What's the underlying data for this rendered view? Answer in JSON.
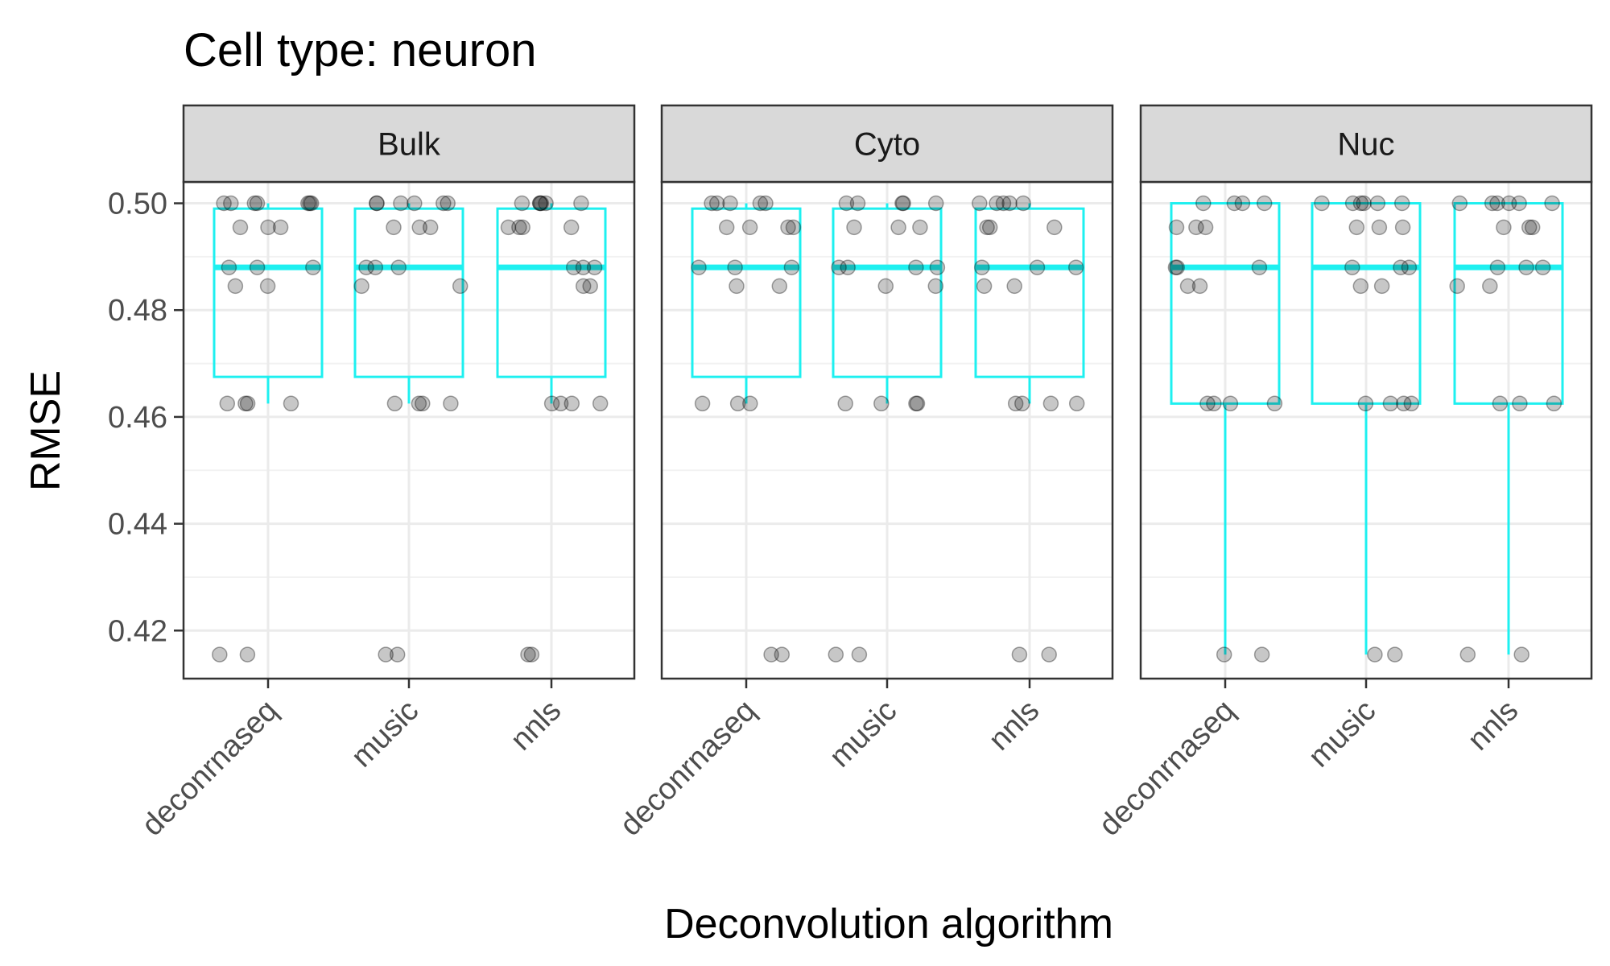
{
  "chart_data": {
    "type": "boxplot",
    "title": "Cell type: neuron",
    "xlabel": "Deconvolution algorithm",
    "ylabel": "RMSE",
    "ylim": [
      0.411,
      0.504
    ],
    "yticks": [
      0.42,
      0.44,
      0.46,
      0.48,
      0.5
    ],
    "ytick_labels": [
      "0.42",
      "0.44",
      "0.46",
      "0.48",
      "0.50"
    ],
    "categories": [
      "deconrnaseq",
      "music",
      "nnls"
    ],
    "grid": true,
    "box_color": "#1ef0f0",
    "point_color": "#000000",
    "panels": [
      {
        "name": "Bulk",
        "boxes": [
          {
            "category": "deconrnaseq",
            "q1": 0.4675,
            "median": 0.488,
            "q3": 0.499,
            "whisker_low": 0.4625,
            "whisker_high": 0.5
          },
          {
            "category": "music",
            "q1": 0.4675,
            "median": 0.488,
            "q3": 0.499,
            "whisker_low": 0.4625,
            "whisker_high": 0.5
          },
          {
            "category": "nnls",
            "q1": 0.4675,
            "median": 0.488,
            "q3": 0.499,
            "whisker_low": 0.4625,
            "whisker_high": 0.5
          }
        ],
        "points": [
          {
            "category": "deconrnaseq",
            "values": [
              0.5,
              0.5,
              0.5,
              0.5,
              0.5,
              0.5,
              0.5,
              0.4955,
              0.4955,
              0.4955,
              0.488,
              0.488,
              0.488,
              0.4845,
              0.4845,
              0.4625,
              0.4625,
              0.4625,
              0.4625,
              0.4155,
              0.4155
            ]
          },
          {
            "category": "music",
            "values": [
              0.5,
              0.5,
              0.5,
              0.5,
              0.5,
              0.5,
              0.4955,
              0.4955,
              0.4955,
              0.488,
              0.488,
              0.488,
              0.4845,
              0.4845,
              0.4625,
              0.4625,
              0.4625,
              0.4625,
              0.4155,
              0.4155
            ]
          },
          {
            "category": "nnls",
            "values": [
              0.5,
              0.5,
              0.5,
              0.5,
              0.5,
              0.5,
              0.4955,
              0.4955,
              0.4955,
              0.4955,
              0.488,
              0.488,
              0.488,
              0.4845,
              0.4845,
              0.4625,
              0.4625,
              0.4625,
              0.4625,
              0.4155,
              0.4155
            ]
          }
        ]
      },
      {
        "name": "Cyto",
        "boxes": [
          {
            "category": "deconrnaseq",
            "q1": 0.4675,
            "median": 0.488,
            "q3": 0.499,
            "whisker_low": 0.4625,
            "whisker_high": 0.5
          },
          {
            "category": "music",
            "q1": 0.4675,
            "median": 0.488,
            "q3": 0.499,
            "whisker_low": 0.4625,
            "whisker_high": 0.5
          },
          {
            "category": "nnls",
            "q1": 0.4675,
            "median": 0.488,
            "q3": 0.499,
            "whisker_low": 0.4625,
            "whisker_high": 0.5
          }
        ],
        "points": [
          {
            "category": "deconrnaseq",
            "values": [
              0.5,
              0.5,
              0.5,
              0.5,
              0.5,
              0.4955,
              0.4955,
              0.4955,
              0.4955,
              0.488,
              0.488,
              0.488,
              0.4845,
              0.4845,
              0.4625,
              0.4625,
              0.4625,
              0.4155,
              0.4155
            ]
          },
          {
            "category": "music",
            "values": [
              0.5,
              0.5,
              0.5,
              0.5,
              0.5,
              0.4955,
              0.4955,
              0.4955,
              0.488,
              0.488,
              0.488,
              0.488,
              0.4845,
              0.4845,
              0.4625,
              0.4625,
              0.4625,
              0.4625,
              0.4155,
              0.4155
            ]
          },
          {
            "category": "nnls",
            "values": [
              0.5,
              0.5,
              0.5,
              0.5,
              0.5,
              0.4955,
              0.4955,
              0.4955,
              0.488,
              0.488,
              0.488,
              0.4845,
              0.4845,
              0.4625,
              0.4625,
              0.4625,
              0.4625,
              0.4155,
              0.4155
            ]
          }
        ]
      },
      {
        "name": "Nuc",
        "boxes": [
          {
            "category": "deconrnaseq",
            "q1": 0.4625,
            "median": 0.488,
            "q3": 0.5,
            "whisker_low": 0.4155,
            "whisker_high": 0.5
          },
          {
            "category": "music",
            "q1": 0.4625,
            "median": 0.488,
            "q3": 0.5,
            "whisker_low": 0.4155,
            "whisker_high": 0.5
          },
          {
            "category": "nnls",
            "q1": 0.4625,
            "median": 0.488,
            "q3": 0.5,
            "whisker_low": 0.4155,
            "whisker_high": 0.5
          }
        ],
        "points": [
          {
            "category": "deconrnaseq",
            "values": [
              0.5,
              0.5,
              0.5,
              0.5,
              0.4955,
              0.4955,
              0.4955,
              0.488,
              0.488,
              0.488,
              0.4845,
              0.4845,
              0.4625,
              0.4625,
              0.4625,
              0.4625,
              0.4155,
              0.4155
            ]
          },
          {
            "category": "music",
            "values": [
              0.5,
              0.5,
              0.5,
              0.5,
              0.5,
              0.5,
              0.4955,
              0.4955,
              0.4955,
              0.488,
              0.488,
              0.488,
              0.4845,
              0.4845,
              0.4625,
              0.4625,
              0.4625,
              0.4625,
              0.4155,
              0.4155
            ]
          },
          {
            "category": "nnls",
            "values": [
              0.5,
              0.5,
              0.5,
              0.5,
              0.5,
              0.5,
              0.4955,
              0.4955,
              0.4955,
              0.488,
              0.488,
              0.488,
              0.4845,
              0.4845,
              0.4625,
              0.4625,
              0.4625,
              0.4155,
              0.4155
            ]
          }
        ]
      }
    ]
  }
}
